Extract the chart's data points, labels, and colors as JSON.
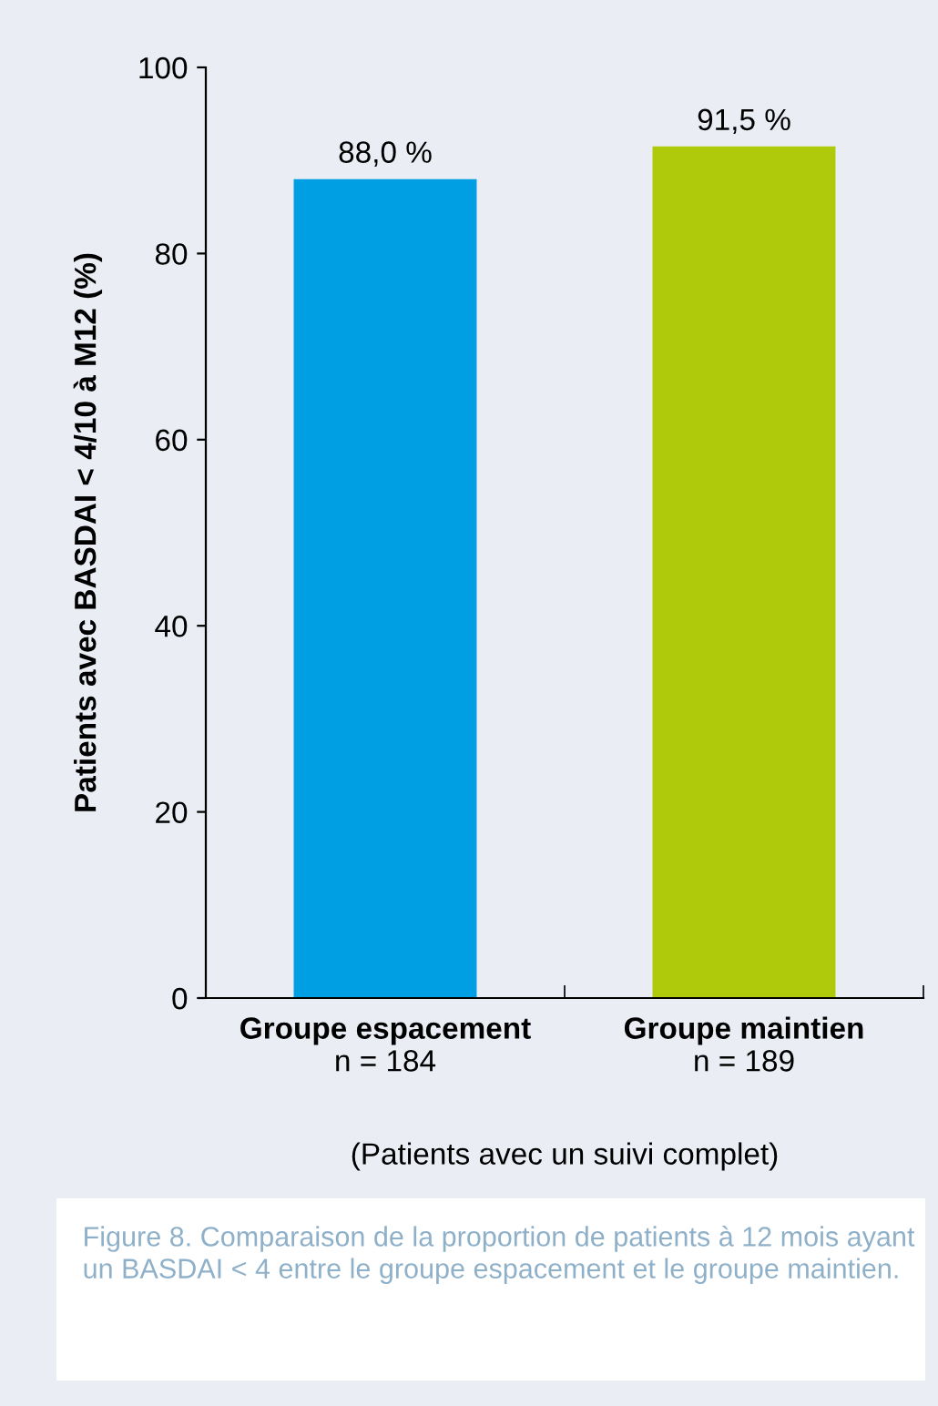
{
  "chart_data": {
    "type": "bar",
    "title": "Figure 8. Comparaison de la proportion de patients à 12 mois ayant un BASDAI < 4 entre le groupe espacement et le groupe maintien.",
    "ylabel": "Patients avec BASDAI < 4/10 à M12 (%)",
    "xlabel": "(Patients avec un suivi complet)",
    "categories": [
      "Groupe espacement\nn = 184",
      "Groupe maintien\nn = 189"
    ],
    "values": [
      88.0,
      91.5
    ],
    "colors": [
      "#009fe3",
      "#afca0b"
    ],
    "value_labels": [
      "88,0 %",
      "91,5 %"
    ],
    "ylim": [
      0,
      100
    ],
    "yticks": [
      0,
      20,
      40,
      60,
      80,
      100
    ],
    "grid": false,
    "legend": false
  }
}
